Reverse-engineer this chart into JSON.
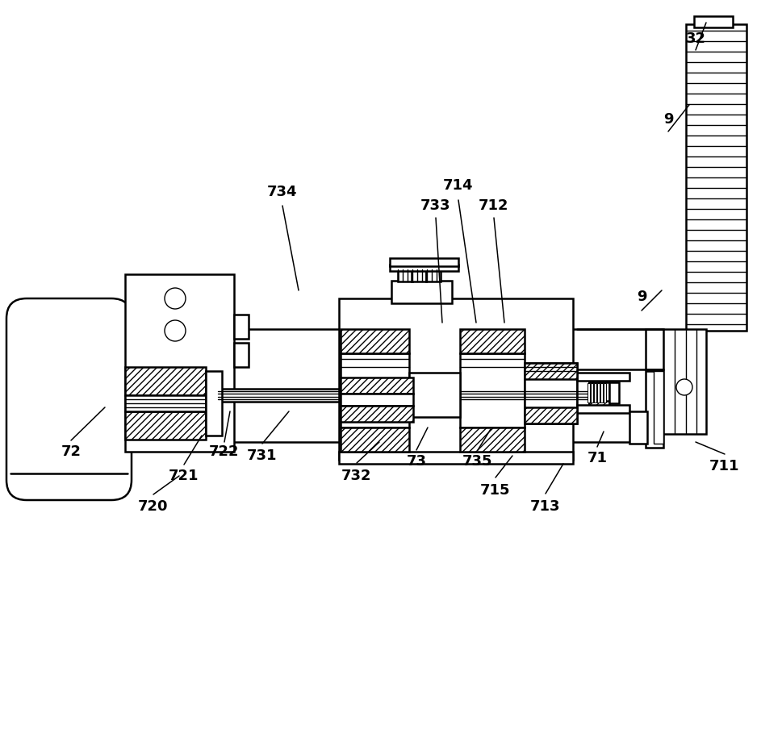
{
  "bg_color": "#ffffff",
  "line_color": "#000000",
  "lw_main": 1.8,
  "lw_thin": 1.0,
  "label_data": [
    [
      "32",
      862,
      48,
      862,
      62,
      875,
      28
    ],
    [
      "9",
      828,
      148,
      828,
      163,
      854,
      130
    ],
    [
      "9",
      795,
      368,
      795,
      385,
      820,
      360
    ],
    [
      "714",
      568,
      230,
      568,
      248,
      590,
      400
    ],
    [
      "733",
      540,
      255,
      540,
      270,
      548,
      400
    ],
    [
      "712",
      612,
      255,
      612,
      270,
      625,
      400
    ],
    [
      "734",
      350,
      238,
      350,
      255,
      370,
      360
    ],
    [
      "722",
      278,
      560,
      278,
      548,
      285,
      510
    ],
    [
      "721",
      228,
      590,
      228,
      576,
      250,
      540
    ],
    [
      "720",
      190,
      628,
      190,
      613,
      222,
      590
    ],
    [
      "72",
      88,
      560,
      88,
      546,
      130,
      505
    ],
    [
      "731",
      325,
      565,
      325,
      550,
      358,
      510
    ],
    [
      "732",
      442,
      590,
      442,
      574,
      470,
      548
    ],
    [
      "73",
      516,
      572,
      516,
      558,
      530,
      530
    ],
    [
      "735",
      592,
      572,
      592,
      558,
      608,
      532
    ],
    [
      "715",
      614,
      608,
      614,
      592,
      635,
      565
    ],
    [
      "713",
      676,
      628,
      676,
      612,
      698,
      575
    ],
    [
      "71",
      740,
      568,
      740,
      554,
      748,
      535
    ],
    [
      "711",
      898,
      578,
      898,
      563,
      862,
      548
    ]
  ]
}
